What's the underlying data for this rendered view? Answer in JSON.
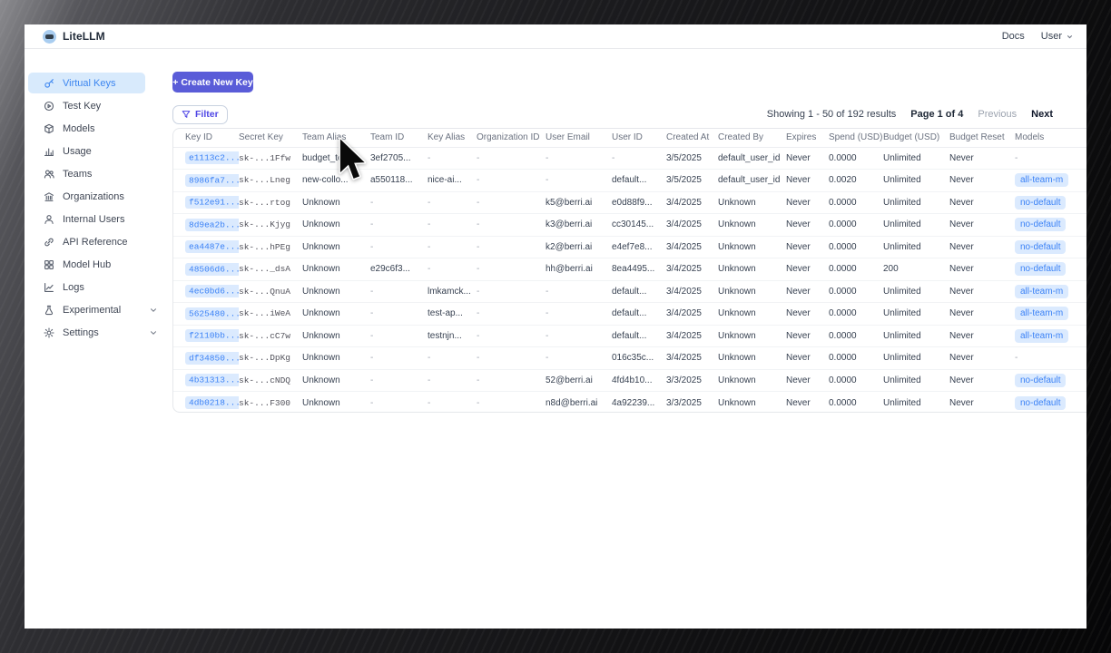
{
  "header": {
    "brand": "LiteLLM",
    "docs_link": "Docs",
    "user_menu": "User"
  },
  "sidebar": {
    "items": [
      {
        "label": "Virtual Keys",
        "icon": "key-icon",
        "active": true
      },
      {
        "label": "Test Key",
        "icon": "play-circle-icon",
        "active": false
      },
      {
        "label": "Models",
        "icon": "cube-icon",
        "active": false
      },
      {
        "label": "Usage",
        "icon": "bar-chart-icon",
        "active": false
      },
      {
        "label": "Teams",
        "icon": "users-icon",
        "active": false
      },
      {
        "label": "Organizations",
        "icon": "bank-icon",
        "active": false
      },
      {
        "label": "Internal Users",
        "icon": "user-icon",
        "active": false
      },
      {
        "label": "API Reference",
        "icon": "link-icon",
        "active": false
      },
      {
        "label": "Model Hub",
        "icon": "grid-icon",
        "active": false
      },
      {
        "label": "Logs",
        "icon": "line-chart-icon",
        "active": false
      },
      {
        "label": "Experimental",
        "icon": "flask-icon",
        "active": false,
        "expandable": true
      },
      {
        "label": "Settings",
        "icon": "gear-icon",
        "active": false,
        "expandable": true
      }
    ]
  },
  "toolbar": {
    "create_button": "+ Create New Key",
    "filter_button": "Filter"
  },
  "pagination": {
    "showing": "Showing 1 - 50 of 192 results",
    "page": "Page 1 of 4",
    "previous": "Previous",
    "next": "Next"
  },
  "table": {
    "columns": [
      "Key ID",
      "Secret Key",
      "Team Alias",
      "Team ID",
      "Key Alias",
      "Organization ID",
      "User Email",
      "User ID",
      "Created At",
      "Created By",
      "Expires",
      "Spend (USD)",
      "Budget (USD)",
      "Budget Reset",
      "Models"
    ],
    "rows": [
      [
        "e1113c2...",
        "sk-...1Ffw",
        "budget_te...",
        "3ef2705...",
        "-",
        "-",
        "-",
        "-",
        "3/5/2025",
        "default_user_id",
        "Never",
        "0.0000",
        "Unlimited",
        "Never",
        "-"
      ],
      [
        "8986fa7...",
        "sk-...Lneg",
        "new-collo...",
        "a550118...",
        "nice-ai...",
        "-",
        "-",
        "default...",
        "3/5/2025",
        "default_user_id",
        "Never",
        "0.0020",
        "Unlimited",
        "Never",
        "all-team-m"
      ],
      [
        "f512e91...",
        "sk-...rtog",
        "Unknown",
        "-",
        "-",
        "-",
        "k5@berri.ai",
        "e0d88f9...",
        "3/4/2025",
        "Unknown",
        "Never",
        "0.0000",
        "Unlimited",
        "Never",
        "no-default"
      ],
      [
        "8d9ea2b...",
        "sk-...Kjyg",
        "Unknown",
        "-",
        "-",
        "-",
        "k3@berri.ai",
        "cc30145...",
        "3/4/2025",
        "Unknown",
        "Never",
        "0.0000",
        "Unlimited",
        "Never",
        "no-default"
      ],
      [
        "ea4487e...",
        "sk-...hPEg",
        "Unknown",
        "-",
        "-",
        "-",
        "k2@berri.ai",
        "e4ef7e8...",
        "3/4/2025",
        "Unknown",
        "Never",
        "0.0000",
        "Unlimited",
        "Never",
        "no-default"
      ],
      [
        "48506d6...",
        "sk-..._dsA",
        "Unknown",
        "e29c6f3...",
        "-",
        "-",
        "hh@berri.ai",
        "8ea4495...",
        "3/4/2025",
        "Unknown",
        "Never",
        "0.0000",
        "200",
        "Never",
        "no-default"
      ],
      [
        "4ec0bd6...",
        "sk-...QnuA",
        "Unknown",
        "-",
        "lmkamck...",
        "-",
        "-",
        "default...",
        "3/4/2025",
        "Unknown",
        "Never",
        "0.0000",
        "Unlimited",
        "Never",
        "all-team-m"
      ],
      [
        "5625480...",
        "sk-...iWeA",
        "Unknown",
        "-",
        "test-ap...",
        "-",
        "-",
        "default...",
        "3/4/2025",
        "Unknown",
        "Never",
        "0.0000",
        "Unlimited",
        "Never",
        "all-team-m"
      ],
      [
        "f2110bb...",
        "sk-...cC7w",
        "Unknown",
        "-",
        "testnjn...",
        "-",
        "-",
        "default...",
        "3/4/2025",
        "Unknown",
        "Never",
        "0.0000",
        "Unlimited",
        "Never",
        "all-team-m"
      ],
      [
        "df34850...",
        "sk-...DpKg",
        "Unknown",
        "-",
        "-",
        "-",
        "-",
        "016c35c...",
        "3/4/2025",
        "Unknown",
        "Never",
        "0.0000",
        "Unlimited",
        "Never",
        "-"
      ],
      [
        "4b31313...",
        "sk-...cNDQ",
        "Unknown",
        "-",
        "-",
        "-",
        "52@berri.ai",
        "4fd4b10...",
        "3/3/2025",
        "Unknown",
        "Never",
        "0.0000",
        "Unlimited",
        "Never",
        "no-default"
      ],
      [
        "4db0218...",
        "sk-...F300",
        "Unknown",
        "-",
        "-",
        "-",
        "n8d@berri.ai",
        "4a92239...",
        "3/3/2025",
        "Unknown",
        "Never",
        "0.0000",
        "Unlimited",
        "Never",
        "no-default"
      ]
    ]
  },
  "colors": {
    "accent": "#5a5cd8",
    "active_item_text": "#3d86f0",
    "active_item_bg": "#d8eafc",
    "key_link": "#3b82f6",
    "badge_bg": "#dbeafe"
  }
}
